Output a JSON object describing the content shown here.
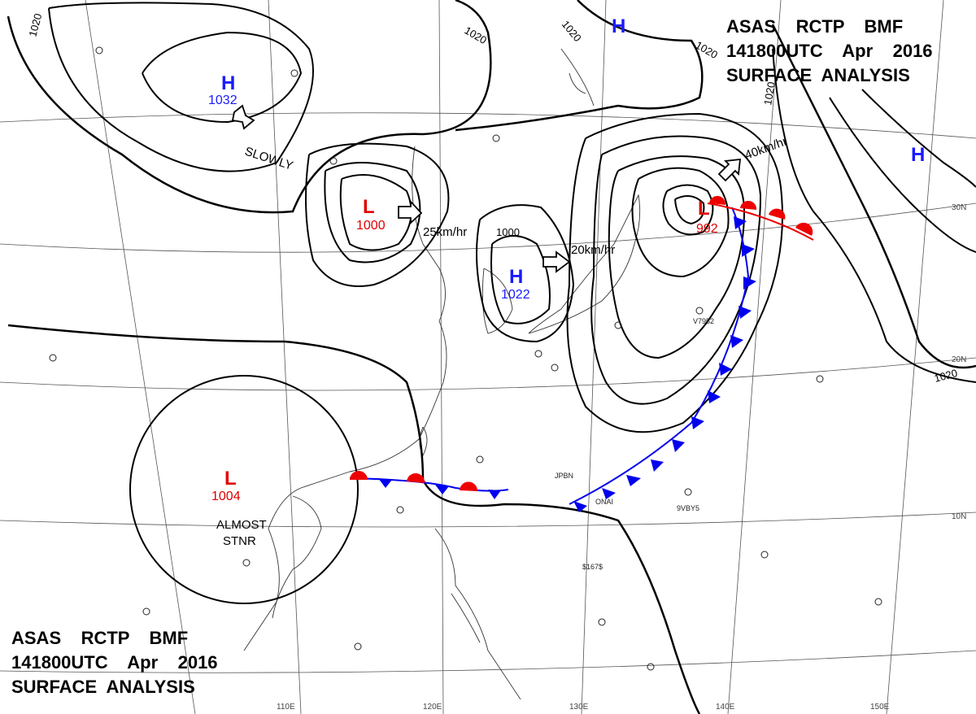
{
  "header_top": {
    "line1": "ASAS    RCTP    BMF",
    "line2": "141800UTC    Apr    2016",
    "line3": "SURFACE  ANALYSIS"
  },
  "header_bottom": {
    "line1": "ASAS    RCTP    BMF",
    "line2": "141800UTC    Apr    2016",
    "line3": "SURFACE  ANALYSIS"
  },
  "systems": {
    "high_nw": {
      "letter": "H",
      "value": "1032"
    },
    "high_ne_top": {
      "letter": "H",
      "value": ""
    },
    "high_east": {
      "letter": "H",
      "value": ""
    },
    "low_china": {
      "letter": "L",
      "value": "1000"
    },
    "high_korea": {
      "letter": "H",
      "value": "1022"
    },
    "low_pacific": {
      "letter": "L",
      "value": "992"
    },
    "low_indochina": {
      "letter": "L",
      "value": "1004"
    }
  },
  "motion": {
    "slowly": "SLOWLY",
    "low_china_speed": "25km/hr",
    "high_korea_speed": "20km/hr",
    "low_pacific_speed": "40km/hr",
    "almost": "ALMOST",
    "stnr": "STNR"
  },
  "isobar_labels": [
    "1020",
    "1020",
    "1020",
    "1020",
    "1020",
    "1020",
    "1000"
  ],
  "lat_labels": [
    "30N",
    "20N",
    "10N"
  ],
  "lon_labels": [
    "110E",
    "120E",
    "130E",
    "140E",
    "150E"
  ],
  "station_labels": [
    "V7952",
    "9VBY5",
    "JPBN",
    "ONAI",
    "$167$"
  ],
  "colors": {
    "high": "#1a1aff",
    "low": "#e00000",
    "isobar": "#000000",
    "cold_front": "#0000ee",
    "warm_front": "#ee0000",
    "grid": "#555555"
  }
}
